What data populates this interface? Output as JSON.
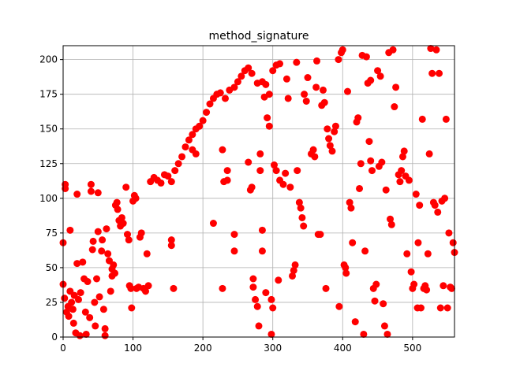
{
  "chart_data": {
    "type": "scatter",
    "title": "method_signature",
    "color": "#ff0000",
    "grid": true,
    "xlim": [
      0,
      560
    ],
    "ylim": [
      0,
      210
    ],
    "xticks": [
      0,
      100,
      200,
      300,
      400,
      500
    ],
    "yticks": [
      0,
      25,
      50,
      75,
      100,
      125,
      150,
      175,
      200
    ],
    "x": [
      0,
      0,
      2,
      3,
      3,
      5,
      7,
      8,
      10,
      10,
      12,
      14,
      15,
      16,
      18,
      20,
      20,
      22,
      24,
      25,
      28,
      30,
      32,
      33,
      35,
      38,
      40,
      40,
      42,
      43,
      45,
      46,
      48,
      50,
      50,
      52,
      55,
      56,
      58,
      60,
      60,
      62,
      64,
      66,
      68,
      70,
      70,
      72,
      74,
      75,
      77,
      78,
      80,
      82,
      84,
      86,
      90,
      92,
      94,
      95,
      97,
      98,
      100,
      102,
      104,
      105,
      108,
      110,
      112,
      115,
      118,
      120,
      122,
      125,
      130,
      135,
      140,
      145,
      150,
      155,
      160,
      165,
      170,
      175,
      180,
      185,
      190,
      195,
      200,
      205,
      210,
      215,
      220,
      225,
      232,
      238,
      245,
      250,
      255,
      260,
      265,
      270,
      278,
      285,
      290,
      295,
      300,
      305,
      310,
      185,
      190,
      155,
      155,
      158,
      215,
      228,
      228,
      230,
      235,
      235,
      245,
      245,
      265,
      268,
      270,
      272,
      272,
      275,
      278,
      280,
      282,
      282,
      285,
      285,
      288,
      290,
      292,
      295,
      298,
      298,
      300,
      302,
      305,
      308,
      310,
      315,
      318,
      320,
      322,
      325,
      328,
      330,
      332,
      334,
      335,
      338,
      340,
      342,
      344,
      345,
      348,
      350,
      355,
      358,
      360,
      362,
      363,
      365,
      368,
      370,
      372,
      374,
      376,
      378,
      380,
      382,
      385,
      388,
      390,
      394,
      395,
      398,
      400,
      402,
      404,
      405,
      407,
      410,
      412,
      414,
      418,
      420,
      422,
      424,
      426,
      428,
      430,
      432,
      434,
      436,
      438,
      440,
      442,
      444,
      446,
      448,
      450,
      452,
      454,
      456,
      458,
      460,
      462,
      464,
      466,
      468,
      470,
      472,
      474,
      476,
      480,
      482,
      484,
      486,
      488,
      490,
      492,
      495,
      498,
      500,
      502,
      505,
      507,
      508,
      510,
      512,
      514,
      516,
      518,
      520,
      522,
      524,
      526,
      528,
      530,
      532,
      534,
      536,
      538,
      540,
      542,
      544,
      546,
      548,
      550,
      552,
      554,
      556,
      558,
      560,
      440
    ],
    "values": [
      38,
      68,
      28,
      110,
      107,
      18,
      22,
      15,
      33,
      77,
      25,
      20,
      10,
      30,
      3,
      103,
      53,
      27,
      1,
      32,
      54,
      42,
      18,
      2,
      40,
      14,
      110,
      105,
      63,
      69,
      25,
      8,
      42,
      104,
      76,
      29,
      62,
      70,
      20,
      6,
      1,
      78,
      60,
      55,
      33,
      44,
      49,
      52,
      46,
      95,
      97,
      92,
      84,
      80,
      86,
      82,
      108,
      74,
      70,
      37,
      35,
      21,
      98,
      102,
      100,
      35,
      36,
      72,
      75,
      35,
      33,
      60,
      37,
      112,
      115,
      113,
      111,
      117,
      116,
      112,
      120,
      125,
      130,
      137,
      142,
      146,
      150,
      152,
      156,
      162,
      168,
      172,
      175,
      176,
      172,
      178,
      180,
      184,
      188,
      192,
      194,
      190,
      183,
      184,
      182,
      175,
      192,
      196,
      197,
      135,
      132,
      70,
      66,
      35,
      82,
      35,
      135,
      112,
      120,
      113,
      74,
      62,
      126,
      106,
      108,
      42,
      36,
      27,
      22,
      8,
      132,
      120,
      77,
      62,
      173,
      32,
      158,
      152,
      2,
      27,
      21,
      124,
      120,
      41,
      113,
      110,
      118,
      186,
      172,
      108,
      44,
      48,
      52,
      198,
      120,
      97,
      93,
      86,
      80,
      175,
      170,
      187,
      132,
      135,
      130,
      180,
      199,
      74,
      74,
      167,
      178,
      169,
      35,
      150,
      143,
      138,
      134,
      148,
      152,
      200,
      22,
      205,
      207,
      52,
      50,
      46,
      177,
      97,
      93,
      68,
      11,
      155,
      158,
      107,
      125,
      203,
      2,
      62,
      202,
      183,
      141,
      185,
      120,
      35,
      26,
      38,
      192,
      123,
      188,
      126,
      24,
      8,
      106,
      2,
      205,
      85,
      81,
      207,
      166,
      180,
      117,
      112,
      120,
      130,
      134,
      116,
      60,
      113,
      47,
      35,
      38,
      103,
      21,
      68,
      95,
      21,
      157,
      35,
      37,
      34,
      60,
      132,
      208,
      190,
      97,
      95,
      207,
      90,
      190,
      21,
      98,
      37,
      100,
      157,
      21,
      75,
      36,
      35,
      68,
      61,
      127
    ]
  }
}
